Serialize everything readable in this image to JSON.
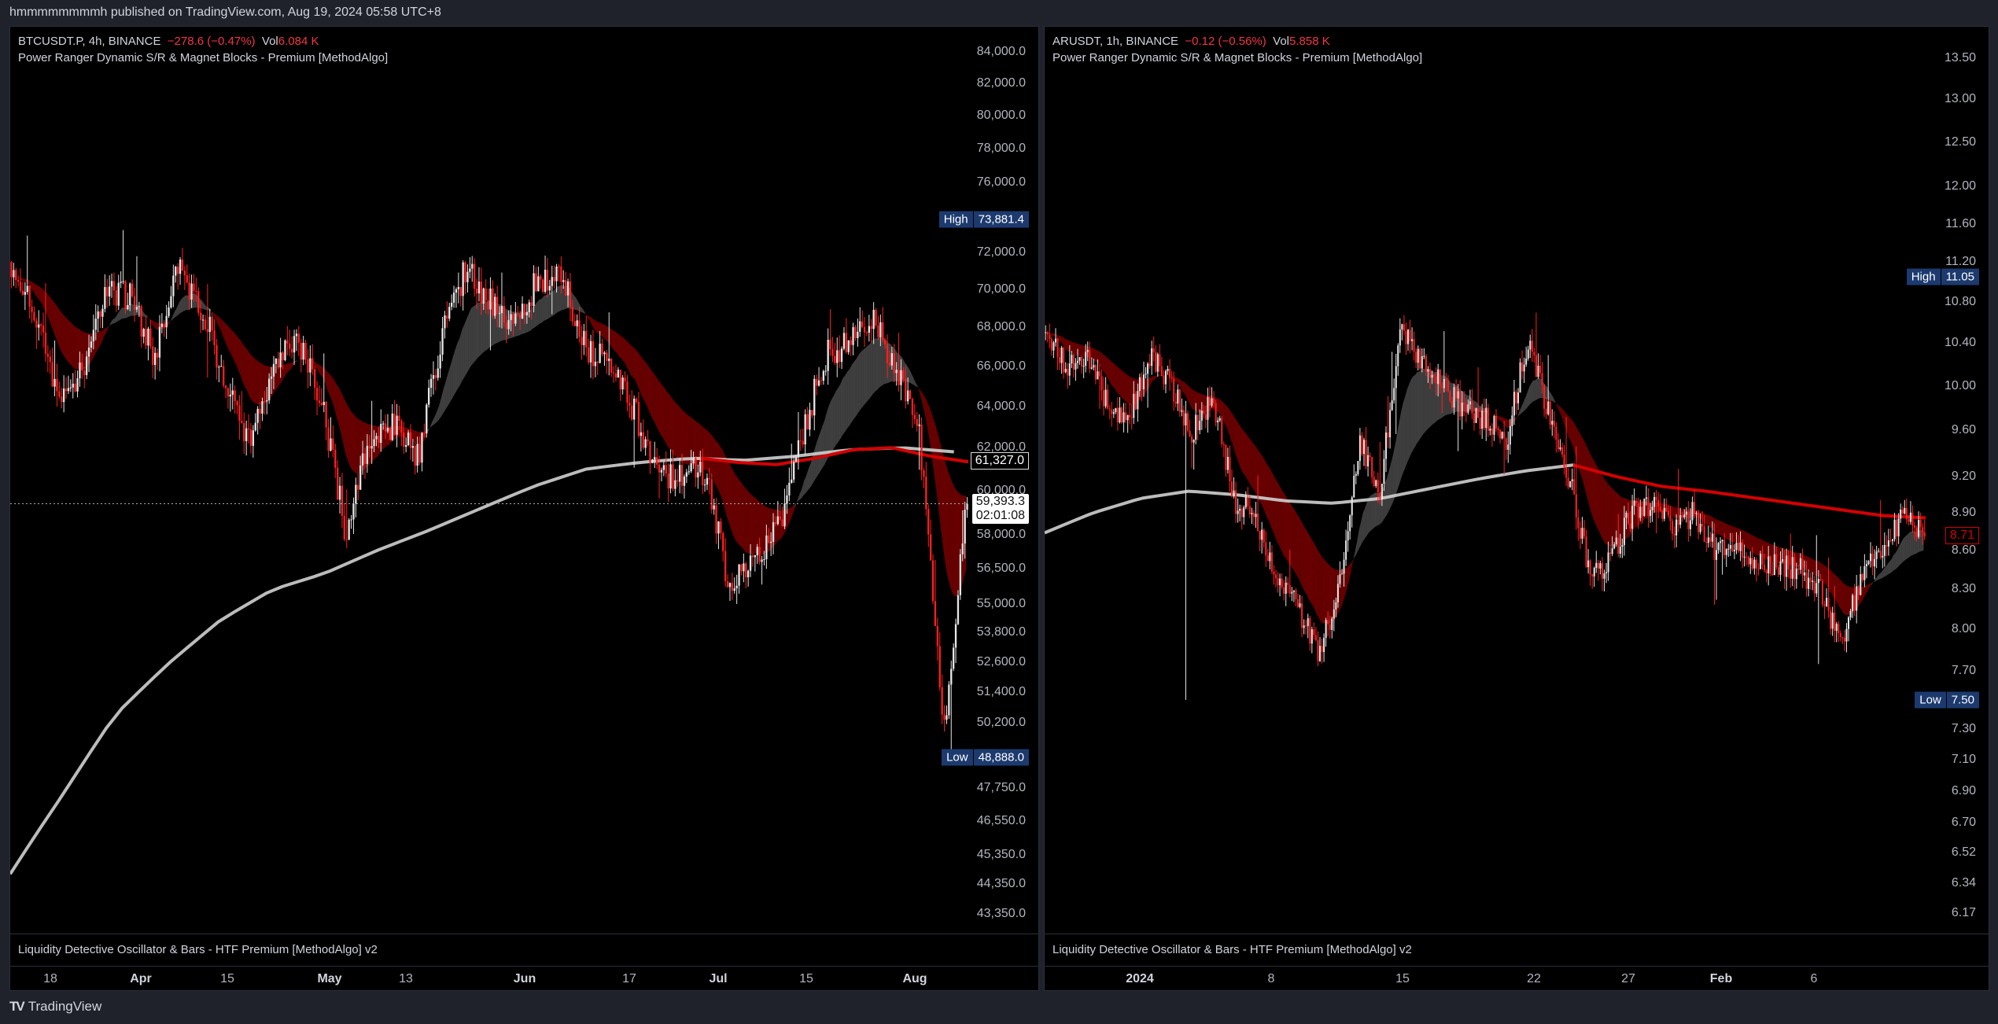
{
  "header": {
    "published": "hmmmmmmmmh published on TradingView.com, Aug 19, 2024 05:58 UTC+8"
  },
  "footer": {
    "brand": "TradingView",
    "logo_icon": "tradingview-logo-icon"
  },
  "colors": {
    "up": "#e6e6e6",
    "down": "#ff1f1f",
    "band_bear": "#8b0000",
    "band_bull": "#8a8a8a",
    "ma": "#d0d0d0",
    "ma_red": "#d40000",
    "tag_bg": "#1c3a6e",
    "change": "#f23645"
  },
  "left": {
    "symbol_line": "BTCUSDT.P, 4h, BINANCE",
    "change": "−278.6 (−0.47%)",
    "vol_label": "Vol",
    "vol": "6.084 K",
    "indicator": "Power Ranger Dynamic S/R & Magnet Blocks - Premium [MethodAlgo]",
    "oscillator": "Liquidity Detective Oscillator & Bars - HTF Premium [MethodAlgo] v2",
    "price_axis": [
      "84,000.0",
      "82,000.0",
      "80,000.0",
      "78,000.0",
      "76,000.0",
      "72,000.0",
      "70,000.0",
      "68,000.0",
      "66,000.0",
      "64,000.0",
      "62,000.0",
      "60,000.0",
      "58,000.0",
      "56,500.0",
      "55,000.0",
      "53,800.0",
      "52,600.0",
      "51,400.0",
      "50,200.0",
      "47,750.0",
      "46,550.0",
      "45,350.0",
      "44,350.0",
      "43,350.0"
    ],
    "high": {
      "label": "High",
      "value": "73,881.4"
    },
    "low": {
      "label": "Low",
      "value": "48,888.0"
    },
    "ma_value": "61,327.0",
    "last_price": "59,393.3",
    "countdown": "02:01:08",
    "time_axis": [
      "18",
      "Apr",
      "15",
      "May",
      "13",
      "Jun",
      "17",
      "Jul",
      "15",
      "Aug"
    ],
    "scale": "log",
    "series": {
      "closes": [
        71500,
        68500,
        64000,
        66000,
        70000,
        69500,
        66500,
        71000,
        69000,
        65000,
        62000,
        66000,
        67500,
        64000,
        58000,
        62500,
        63000,
        61500,
        67500,
        71000,
        69500,
        68000,
        70500,
        71000,
        67000,
        66000,
        64000,
        61000,
        60500,
        61000,
        56000,
        57000,
        58000,
        62000,
        66500,
        67000,
        68500,
        66000,
        62500,
        49500,
        59393.3
      ],
      "ma": [
        44700,
        47500,
        50500,
        52500,
        54300,
        55600,
        56300,
        57300,
        58200,
        59200,
        60200,
        61000,
        61300,
        61500,
        61400,
        61600,
        61900,
        62000,
        61800
      ],
      "ma_red_start_fraction": 0.72,
      "ma_red": [
        61500,
        61300,
        61200,
        61500,
        61900,
        62000,
        61600,
        61327
      ]
    }
  },
  "right": {
    "symbol_line": "ARUSDT, 1h, BINANCE",
    "change": "−0.12 (−0.56%)",
    "vol_label": "Vol",
    "vol": "5.858 K",
    "indicator": "Power Ranger Dynamic S/R & Magnet Blocks - Premium [MethodAlgo]",
    "oscillator": "Liquidity Detective Oscillator & Bars - HTF Premium [MethodAlgo] v2",
    "price_axis": [
      "13.50",
      "13.00",
      "12.50",
      "12.00",
      "11.60",
      "11.20",
      "10.80",
      "10.40",
      "10.00",
      "9.60",
      "9.20",
      "8.90",
      "8.60",
      "8.30",
      "8.00",
      "7.70",
      "7.30",
      "7.10",
      "6.90",
      "6.70",
      "6.52",
      "6.34",
      "6.17"
    ],
    "high": {
      "label": "High",
      "value": "11.05"
    },
    "low": {
      "label": "Low",
      "value": "7.50"
    },
    "last_price": "8.71",
    "time_axis": [
      "2024",
      "8",
      "15",
      "22",
      "27",
      "Feb",
      "6"
    ],
    "scale": "log",
    "series": {
      "closes": [
        10.5,
        10.2,
        10.3,
        9.8,
        9.7,
        10.3,
        10.0,
        9.6,
        9.9,
        9.0,
        8.9,
        8.4,
        8.2,
        7.8,
        8.3,
        9.5,
        9.1,
        10.5,
        10.2,
        10.0,
        9.8,
        9.7,
        9.5,
        10.4,
        9.8,
        9.2,
        8.4,
        8.5,
        8.9,
        9.0,
        8.8,
        8.9,
        8.6,
        8.6,
        8.5,
        8.5,
        8.45,
        8.3,
        7.9,
        8.4,
        8.6,
        8.9,
        8.71
      ],
      "ma": [
        8.74,
        8.9,
        9.02,
        9.08,
        9.05,
        9.0,
        8.98,
        9.02,
        9.1,
        9.18,
        9.25,
        9.3
      ],
      "ma_red_start_fraction": 0.6,
      "ma_red": [
        9.3,
        9.2,
        9.12,
        9.08,
        9.03,
        8.98,
        8.93,
        8.88,
        8.86
      ]
    }
  }
}
